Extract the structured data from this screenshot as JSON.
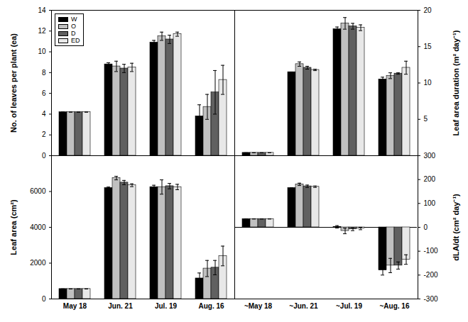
{
  "chart_data": [
    {
      "type": "bar",
      "y_label": "No. of leaves per plant (ea)",
      "categories": [
        "May 18",
        "Jun. 21",
        "Jul. 19",
        "Aug. 16"
      ],
      "series": [
        {
          "name": "W",
          "color": "#000000",
          "values": [
            4.2,
            8.8,
            10.9,
            3.8
          ],
          "errors": [
            0,
            0.15,
            0.2,
            1.1
          ]
        },
        {
          "name": "O",
          "color": "#c0c0c0",
          "values": [
            4.2,
            8.6,
            11.5,
            4.7
          ],
          "errors": [
            0,
            0.5,
            0.4,
            1.2
          ]
        },
        {
          "name": "D",
          "color": "#606060",
          "values": [
            4.2,
            8.4,
            11.2,
            6.1
          ],
          "errors": [
            0,
            0.4,
            0.4,
            2.1
          ]
        },
        {
          "name": "ED",
          "color": "#e8e8e8",
          "values": [
            4.2,
            8.5,
            11.7,
            7.3
          ],
          "errors": [
            0,
            0.4,
            0.2,
            1.4
          ]
        }
      ],
      "ylim": [
        0,
        14
      ],
      "yticks": [
        0,
        2,
        4,
        6,
        8,
        10,
        12,
        14
      ],
      "legend": "top-left",
      "tick_labels": "y"
    },
    {
      "type": "bar",
      "y_label": "Leaf area duration (m² day⁻¹)",
      "categories": [
        "~May 18",
        "~Jun. 21",
        "~Jul. 19",
        "~Aug. 16"
      ],
      "series": [
        {
          "name": "W",
          "color": "#000000",
          "values": [
            0.4,
            11.5,
            17.4,
            10.5
          ],
          "errors": [
            0,
            0,
            0.3,
            0.3
          ]
        },
        {
          "name": "O",
          "color": "#c0c0c0",
          "values": [
            0.4,
            12.6,
            18.2,
            11.0
          ],
          "errors": [
            0,
            0.3,
            0.8,
            0.4
          ]
        },
        {
          "name": "D",
          "color": "#606060",
          "values": [
            0.4,
            12.1,
            17.8,
            11.3
          ],
          "errors": [
            0,
            0.2,
            0.4,
            0.1
          ]
        },
        {
          "name": "ED",
          "color": "#e8e8e8",
          "values": [
            0.4,
            11.8,
            17.6,
            12.1
          ],
          "errors": [
            0,
            0.1,
            0.4,
            0.9
          ]
        }
      ],
      "ylim": [
        0,
        20
      ],
      "yticks": [
        5,
        10,
        15,
        20
      ],
      "tick_labels": "y"
    },
    {
      "type": "bar",
      "y_label": "Leaf area (cm²)",
      "categories": [
        "May 18",
        "Jun. 21",
        "Jul. 19",
        "Aug. 16"
      ],
      "series": [
        {
          "name": "W",
          "color": "#000000",
          "values": [
            560,
            6200,
            6250,
            1150
          ],
          "errors": [
            0,
            50,
            100,
            300
          ]
        },
        {
          "name": "O",
          "color": "#c0c0c0",
          "values": [
            560,
            6750,
            6250,
            1700
          ],
          "errors": [
            0,
            100,
            400,
            450
          ]
        },
        {
          "name": "D",
          "color": "#606060",
          "values": [
            560,
            6500,
            6300,
            1750
          ],
          "errors": [
            0,
            120,
            150,
            400
          ]
        },
        {
          "name": "ED",
          "color": "#e8e8e8",
          "values": [
            560,
            6350,
            6250,
            2400
          ],
          "errors": [
            0,
            80,
            150,
            550
          ]
        }
      ],
      "ylim": [
        0,
        8000
      ],
      "yticks": [
        0,
        2000,
        4000,
        6000
      ]
    },
    {
      "type": "bar",
      "y_label": "dLA/dt (cm² day⁻¹)",
      "categories": [
        "~May 18",
        "~Jun. 21",
        "~Jul. 19",
        "~Aug. 16"
      ],
      "series": [
        {
          "name": "W",
          "color": "#000000",
          "values": [
            35,
            165,
            2,
            -180
          ],
          "errors": [
            0,
            0,
            5,
            20
          ]
        },
        {
          "name": "O",
          "color": "#c0c0c0",
          "values": [
            35,
            180,
            -15,
            -160
          ],
          "errors": [
            0,
            5,
            12,
            30
          ]
        },
        {
          "name": "D",
          "color": "#606060",
          "values": [
            35,
            172,
            -8,
            -160
          ],
          "errors": [
            0,
            5,
            6,
            15
          ]
        },
        {
          "name": "ED",
          "color": "#e8e8e8",
          "values": [
            35,
            170,
            -5,
            -135
          ],
          "errors": [
            0,
            3,
            5,
            20
          ]
        }
      ],
      "ylim": [
        -300,
        300
      ],
      "yticks": [
        -300,
        -200,
        -100,
        0,
        100,
        200,
        300
      ]
    }
  ]
}
